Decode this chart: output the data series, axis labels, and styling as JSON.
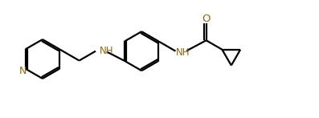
{
  "bg_color": "#ffffff",
  "bond_color": "#000000",
  "n_color": "#8B6914",
  "o_color": "#8B6914",
  "line_width": 1.6,
  "fig_width": 3.97,
  "fig_height": 1.47,
  "dpi": 100,
  "xlim": [
    0,
    10
  ],
  "ylim": [
    0,
    3.7
  ]
}
